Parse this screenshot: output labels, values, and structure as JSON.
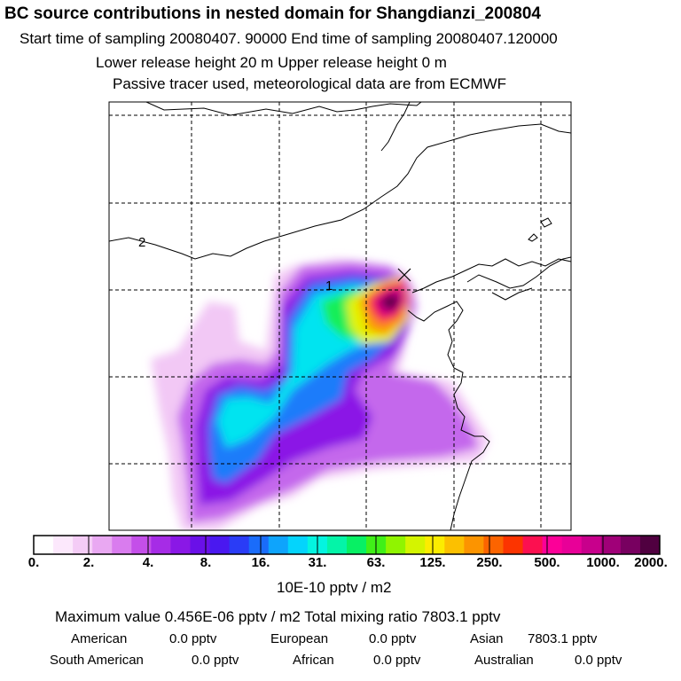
{
  "header": {
    "title": "BC  source contributions in nested domain for Shangdianzi_200804",
    "sampling": "Start time of sampling 20080407. 90000     End time of sampling 20080407.120000",
    "release": "Lower release height   20 m          Upper release height    0 m",
    "note": "Passive tracer used, meteorological data are from ECMWF"
  },
  "map": {
    "labels": [
      "2",
      "1"
    ],
    "colors": {
      "frame": "#000000",
      "grid": "#000000",
      "coast": "#000000"
    }
  },
  "colorbar": {
    "tick_labels": [
      "0.",
      "2.",
      "4.",
      "8.",
      "16.",
      "31.",
      "63.",
      "125.",
      "250.",
      "500.",
      "1000.",
      "2000."
    ],
    "colors": [
      "#ffffff",
      "#fce8fc",
      "#f4ccf6",
      "#e9a8f2",
      "#d97cee",
      "#c44fe9",
      "#a62ce6",
      "#8a18e6",
      "#6a10e8",
      "#4a18f0",
      "#2a3cf6",
      "#1a6cfa",
      "#0ea4fc",
      "#04d4fc",
      "#04f4e0",
      "#04f4a8",
      "#08f064",
      "#40f018",
      "#90f400",
      "#d4f400",
      "#fcec00",
      "#fcc000",
      "#fc9400",
      "#fc6400",
      "#fc3400",
      "#fc1050",
      "#fc0098",
      "#e80098",
      "#c8008c",
      "#a00078",
      "#780060",
      "#500040"
    ],
    "units": "10E-10 pptv / m2"
  },
  "stats": {
    "max_line": "Maximum value  0.456E-06 pptv / m2     Total mixing ratio     7803.1 pptv",
    "row1": [
      {
        "label": "American",
        "value": "0.0 pptv"
      },
      {
        "label": "European",
        "value": "0.0 pptv"
      },
      {
        "label": "Asian",
        "value": "7803.1 pptv"
      }
    ],
    "row2": [
      {
        "label": "South American",
        "value": "0.0 pptv"
      },
      {
        "label": "African",
        "value": "0.0 pptv"
      },
      {
        "label": "Australian",
        "value": "0.0 pptv"
      }
    ]
  }
}
